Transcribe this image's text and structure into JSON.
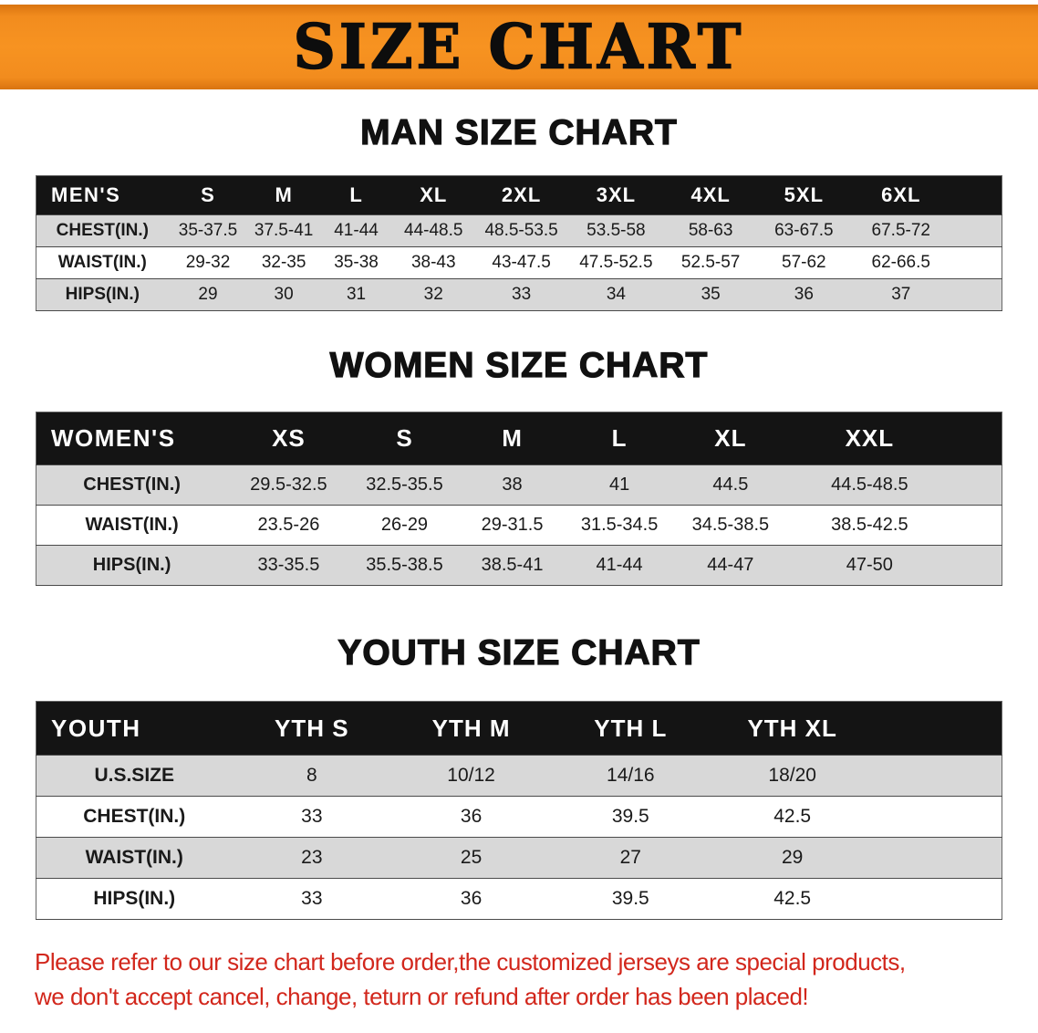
{
  "banner": {
    "title": "SIZE CHART",
    "bg_color": "#F5871F"
  },
  "sections": [
    {
      "heading": "MAN SIZE CHART",
      "table": {
        "corner_label": "MEN'S",
        "sizes": [
          "S",
          "M",
          "L",
          "XL",
          "2XL",
          "3XL",
          "4XL",
          "5XL",
          "6XL"
        ],
        "rows": [
          {
            "label": "CHEST(IN.)",
            "values": [
              "35-37.5",
              "37.5-41",
              "41-44",
              "44-48.5",
              "48.5-53.5",
              "53.5-58",
              "58-63",
              "63-67.5",
              "67.5-72"
            ]
          },
          {
            "label": "WAIST(IN.)",
            "values": [
              "29-32",
              "32-35",
              "35-38",
              "38-43",
              "43-47.5",
              "47.5-52.5",
              "52.5-57",
              "57-62",
              "62-66.5"
            ]
          },
          {
            "label": "HIPS(IN.)",
            "values": [
              "29",
              "30",
              "31",
              "32",
              "33",
              "34",
              "35",
              "36",
              "37"
            ]
          }
        ]
      }
    },
    {
      "heading": "WOMEN SIZE CHART",
      "table": {
        "corner_label": "WOMEN'S",
        "sizes": [
          "XS",
          "S",
          "M",
          "L",
          "XL",
          "XXL"
        ],
        "rows": [
          {
            "label": "CHEST(IN.)",
            "values": [
              "29.5-32.5",
              "32.5-35.5",
              "38",
              "41",
              "44.5",
              "44.5-48.5"
            ]
          },
          {
            "label": "WAIST(IN.)",
            "values": [
              "23.5-26",
              "26-29",
              "29-31.5",
              "31.5-34.5",
              "34.5-38.5",
              "38.5-42.5"
            ]
          },
          {
            "label": "HIPS(IN.)",
            "values": [
              "33-35.5",
              "35.5-38.5",
              "38.5-41",
              "41-44",
              "44-47",
              "47-50"
            ]
          }
        ]
      }
    },
    {
      "heading": "YOUTH SIZE CHART",
      "table": {
        "corner_label": "YOUTH",
        "sizes": [
          "YTH S",
          "YTH M",
          "YTH L",
          "YTH XL"
        ],
        "rows": [
          {
            "label": "U.S.SIZE",
            "values": [
              "8",
              "10/12",
              "14/16",
              "18/20"
            ]
          },
          {
            "label": "CHEST(IN.)",
            "values": [
              "33",
              "36",
              "39.5",
              "42.5"
            ]
          },
          {
            "label": "WAIST(IN.)",
            "values": [
              "23",
              "25",
              "27",
              "29"
            ]
          },
          {
            "label": "HIPS(IN.)",
            "values": [
              "33",
              "36",
              "39.5",
              "42.5"
            ]
          }
        ]
      }
    }
  ],
  "disclaimer": {
    "line1": "Please refer to our size chart before order,the customized jerseys are special products,",
    "line2": "we don't accept cancel, change, teturn or refund after order has been placed!",
    "color": "#D2271C"
  }
}
